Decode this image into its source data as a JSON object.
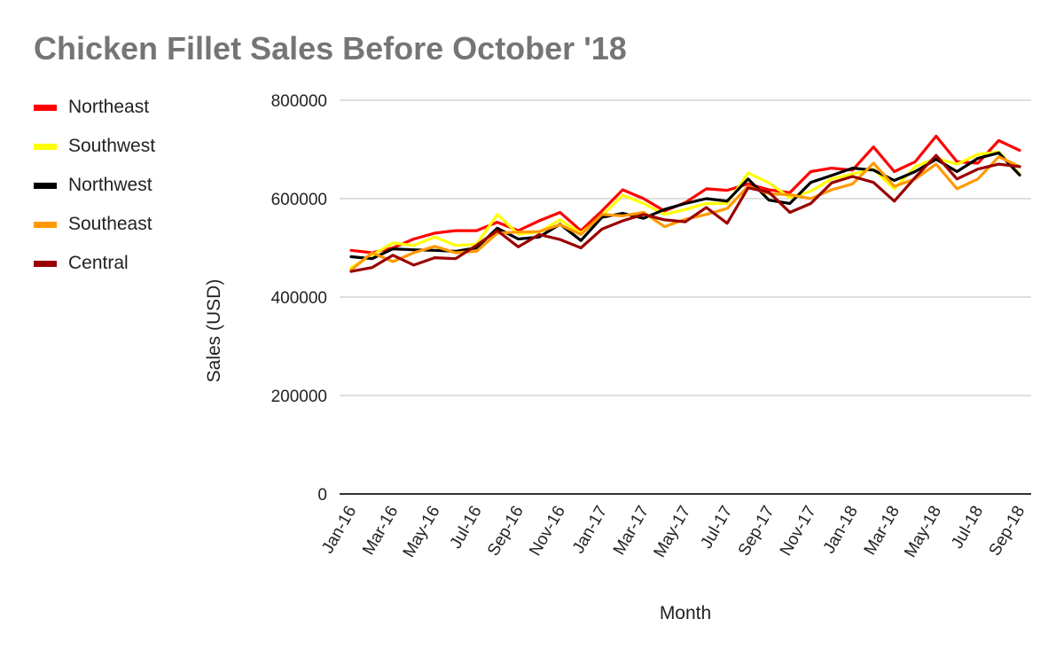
{
  "chart_data": {
    "type": "line",
    "title": "Chicken Fillet Sales Before October '18",
    "xlabel": "Month",
    "ylabel": "Sales (USD)",
    "ylim": [
      0,
      800000
    ],
    "yticks": [
      0,
      200000,
      400000,
      600000,
      800000
    ],
    "grid": true,
    "legend_position": "left",
    "x": [
      "Jan-16",
      "Feb-16",
      "Mar-16",
      "Apr-16",
      "May-16",
      "Jun-16",
      "Jul-16",
      "Aug-16",
      "Sep-16",
      "Oct-16",
      "Nov-16",
      "Dec-16",
      "Jan-17",
      "Feb-17",
      "Mar-17",
      "Apr-17",
      "May-17",
      "Jun-17",
      "Jul-17",
      "Aug-17",
      "Sep-17",
      "Oct-17",
      "Nov-17",
      "Dec-17",
      "Jan-18",
      "Feb-18",
      "Mar-18",
      "Apr-18",
      "May-18",
      "Jun-18",
      "Jul-18",
      "Aug-18",
      "Sep-18"
    ],
    "xtick_labels": [
      "Jan-16",
      "Mar-16",
      "May-16",
      "Jul-16",
      "Sep-16",
      "Nov-16",
      "Jan-17",
      "Mar-17",
      "May-17",
      "Jul-17",
      "Sep-17",
      "Nov-17",
      "Jan-18",
      "Mar-18",
      "May-18",
      "Jul-18",
      "Sep-18"
    ],
    "series": [
      {
        "name": "Northeast",
        "color": "#ff0000",
        "values": [
          495000,
          490000,
          500000,
          518000,
          530000,
          535000,
          535000,
          552000,
          535000,
          555000,
          572000,
          535000,
          575000,
          618000,
          600000,
          575000,
          592000,
          620000,
          617000,
          630000,
          618000,
          612000,
          655000,
          662000,
          658000,
          705000,
          655000,
          675000,
          727000,
          675000,
          672000,
          718000,
          698000
        ]
      },
      {
        "name": "Southwest",
        "color": "#ffff00",
        "values": [
          460000,
          485000,
          510000,
          505000,
          522000,
          505000,
          507000,
          568000,
          528000,
          532000,
          557000,
          530000,
          565000,
          607000,
          590000,
          568000,
          578000,
          590000,
          590000,
          652000,
          632000,
          602000,
          615000,
          640000,
          650000,
          660000,
          620000,
          665000,
          682000,
          670000,
          690000,
          695000,
          650000
        ]
      },
      {
        "name": "Northwest",
        "color": "#000000",
        "values": [
          482000,
          478000,
          498000,
          496000,
          495000,
          493000,
          500000,
          540000,
          518000,
          522000,
          548000,
          515000,
          562000,
          570000,
          560000,
          578000,
          590000,
          600000,
          595000,
          640000,
          597000,
          590000,
          633000,
          647000,
          662000,
          658000,
          637000,
          655000,
          680000,
          655000,
          682000,
          693000,
          648000
        ]
      },
      {
        "name": "Southeast",
        "color": "#ff9900",
        "values": [
          455000,
          490000,
          472000,
          490000,
          503000,
          490000,
          493000,
          530000,
          532000,
          533000,
          547000,
          527000,
          568000,
          565000,
          572000,
          543000,
          558000,
          568000,
          580000,
          625000,
          610000,
          608000,
          600000,
          618000,
          630000,
          672000,
          625000,
          640000,
          670000,
          620000,
          640000,
          685000,
          665000
        ]
      },
      {
        "name": "Central",
        "color": "#990000",
        "values": [
          452000,
          460000,
          485000,
          465000,
          480000,
          478000,
          505000,
          535000,
          502000,
          527000,
          517000,
          500000,
          538000,
          555000,
          568000,
          557000,
          553000,
          582000,
          550000,
          622000,
          613000,
          572000,
          590000,
          632000,
          645000,
          633000,
          595000,
          643000,
          688000,
          640000,
          660000,
          670000,
          665000
        ]
      }
    ]
  }
}
